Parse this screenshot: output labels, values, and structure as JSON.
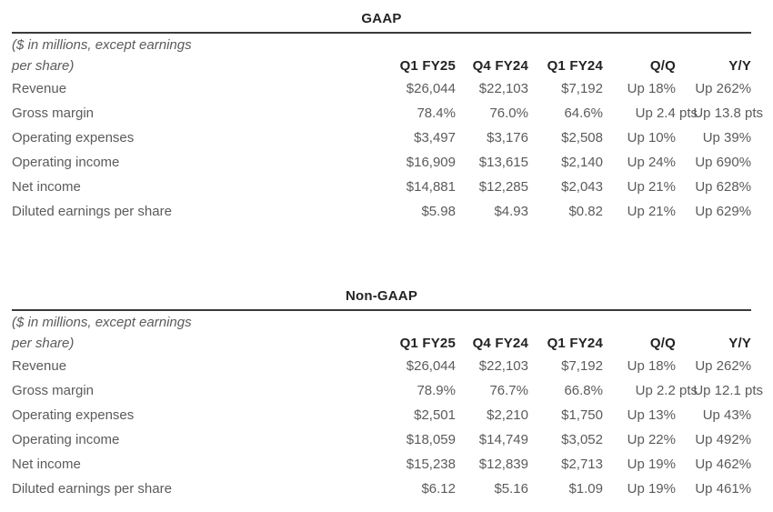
{
  "colors": {
    "background": "#ffffff",
    "heading_text": "#232326",
    "body_text": "#5b5b5e",
    "rule": "#3a3a3c"
  },
  "tables": [
    {
      "title": "GAAP",
      "note_line1": "($ in millions, except earnings",
      "note_line2": "per share)",
      "columns": [
        "Q1 FY25",
        "Q4 FY24",
        "Q1 FY24",
        "Q/Q",
        "Y/Y"
      ],
      "rows": [
        {
          "label": "Revenue",
          "values": [
            "$26,044",
            "$22,103",
            "$7,192",
            "Up 18%",
            "Up 262%"
          ]
        },
        {
          "label": "Gross margin",
          "values": [
            "78.4%",
            "76.0%",
            "64.6%",
            "Up 2.4 pts",
            "Up 13.8 pts"
          ]
        },
        {
          "label": "Operating expenses",
          "values": [
            "$3,497",
            "$3,176",
            "$2,508",
            "Up 10%",
            "Up 39%"
          ]
        },
        {
          "label": "Operating income",
          "values": [
            "$16,909",
            "$13,615",
            "$2,140",
            "Up 24%",
            "Up 690%"
          ]
        },
        {
          "label": "Net income",
          "values": [
            "$14,881",
            "$12,285",
            "$2,043",
            "Up 21%",
            "Up 628%"
          ]
        },
        {
          "label": "Diluted earnings per share",
          "values": [
            "$5.98",
            "$4.93",
            "$0.82",
            "Up 21%",
            "Up 629%"
          ]
        }
      ]
    },
    {
      "title": "Non-GAAP",
      "note_line1": "($ in millions, except earnings",
      "note_line2": "per share)",
      "columns": [
        "Q1 FY25",
        "Q4 FY24",
        "Q1 FY24",
        "Q/Q",
        "Y/Y"
      ],
      "rows": [
        {
          "label": "Revenue",
          "values": [
            "$26,044",
            "$22,103",
            "$7,192",
            "Up 18%",
            "Up 262%"
          ]
        },
        {
          "label": "Gross margin",
          "values": [
            "78.9%",
            "76.7%",
            "66.8%",
            "Up 2.2 pts",
            "Up 12.1 pts"
          ]
        },
        {
          "label": "Operating expenses",
          "values": [
            "$2,501",
            "$2,210",
            "$1,750",
            "Up 13%",
            "Up 43%"
          ]
        },
        {
          "label": "Operating income",
          "values": [
            "$18,059",
            "$14,749",
            "$3,052",
            "Up 22%",
            "Up 492%"
          ]
        },
        {
          "label": "Net income",
          "values": [
            "$15,238",
            "$12,839",
            "$2,713",
            "Up 19%",
            "Up 462%"
          ]
        },
        {
          "label": "Diluted earnings per share",
          "values": [
            "$6.12",
            "$5.16",
            "$1.09",
            "Up 19%",
            "Up 461%"
          ]
        }
      ]
    }
  ]
}
